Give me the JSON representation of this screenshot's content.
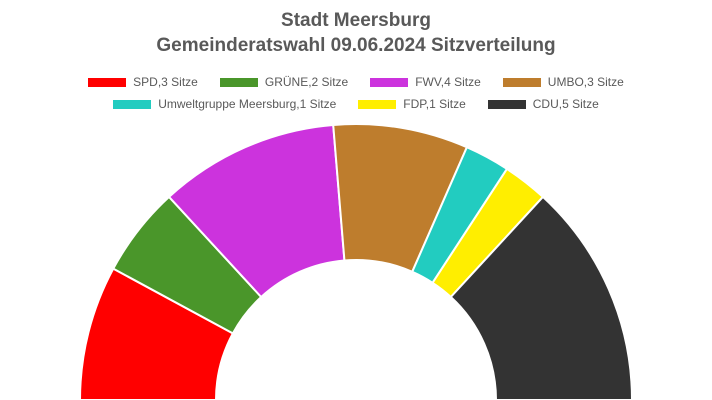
{
  "chart_data": {
    "type": "pie",
    "subtype": "half-donut",
    "title": "Stadt Meersburg",
    "subtitle": "Gemeinderatswahl 09.06.2024 Sitzverteilung",
    "legend_position": "top",
    "series": [
      {
        "label": "SPD,3 Sitze",
        "party": "SPD",
        "value": 3,
        "color": "#ff0000"
      },
      {
        "label": "GRÜNE,2 Sitze",
        "party": "GRÜNE",
        "value": 2,
        "color": "#4a962a"
      },
      {
        "label": "FWV,4 Sitze",
        "party": "FWV",
        "value": 4,
        "color": "#cc33dd"
      },
      {
        "label": "UMBO,3 Sitze",
        "party": "UMBO",
        "value": 3,
        "color": "#be7d2d"
      },
      {
        "label": "Umweltgruppe Meersburg,1 Sitze",
        "party": "Umweltgruppe Meersburg",
        "value": 1,
        "color": "#22ccc0"
      },
      {
        "label": "FDP,1 Sitze",
        "party": "FDP",
        "value": 1,
        "color": "#ffee00"
      },
      {
        "label": "CDU,5 Sitze",
        "party": "CDU",
        "value": 5,
        "color": "#333333"
      }
    ]
  }
}
